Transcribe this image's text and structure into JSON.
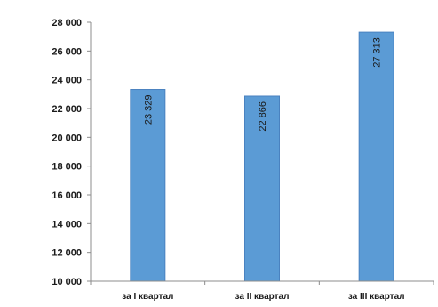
{
  "chart_data": {
    "type": "bar",
    "categories": [
      "за I квартал",
      "за II квартал",
      "за III квартал"
    ],
    "values": [
      23329,
      22866,
      27313
    ],
    "data_labels": [
      "23 329",
      "22 866",
      "27 313"
    ],
    "ylim": [
      10000,
      28000
    ],
    "yticks": [
      10000,
      12000,
      14000,
      16000,
      18000,
      20000,
      22000,
      24000,
      26000,
      28000
    ],
    "ytick_labels": [
      "10 000",
      "12 000",
      "14 000",
      "16 000",
      "18 000",
      "20 000",
      "22 000",
      "24 000",
      "26 000",
      "28 000"
    ],
    "grid": false,
    "legend": "none",
    "bar_color": "#5b9bd5"
  }
}
